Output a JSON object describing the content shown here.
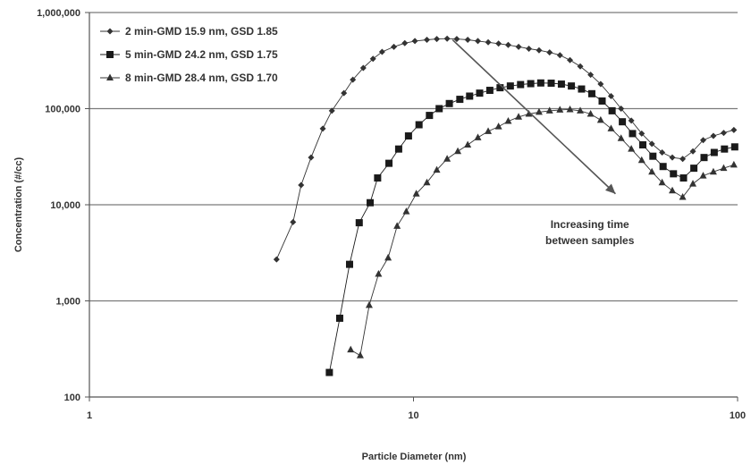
{
  "chart_data": {
    "type": "scatter",
    "title": "",
    "xlabel": "Particle Diameter (nm)",
    "ylabel": "Concentration (#/cc)",
    "x_scale": "log",
    "y_scale": "log",
    "xlim": [
      1,
      100
    ],
    "ylim": [
      100,
      1000000
    ],
    "x_ticks": [
      {
        "value": 1,
        "label": "1"
      },
      {
        "value": 10,
        "label": "10"
      },
      {
        "value": 100,
        "label": "100"
      }
    ],
    "y_ticks": [
      {
        "value": 100,
        "label": "100"
      },
      {
        "value": 1000,
        "label": "1,000"
      },
      {
        "value": 10000,
        "label": "10,000"
      },
      {
        "value": 100000,
        "label": "100,000"
      },
      {
        "value": 1000000,
        "label": "1,000,000"
      }
    ],
    "grid": "horizontal",
    "legend_position": "top-left",
    "series": [
      {
        "name": "2 min-GMD 15.9 nm, GSD 1.85",
        "marker": "diamond",
        "color": "#333333",
        "points": [
          [
            3.78,
            2700
          ],
          [
            4.25,
            6600
          ],
          [
            4.5,
            16000
          ],
          [
            4.83,
            31000
          ],
          [
            5.25,
            62000
          ],
          [
            5.6,
            95000
          ],
          [
            6.1,
            145000
          ],
          [
            6.5,
            200000
          ],
          [
            7.0,
            265000
          ],
          [
            7.5,
            330000
          ],
          [
            8.0,
            390000
          ],
          [
            8.7,
            440000
          ],
          [
            9.4,
            480000
          ],
          [
            10.1,
            505000
          ],
          [
            11.0,
            520000
          ],
          [
            11.8,
            530000
          ],
          [
            12.7,
            535000
          ],
          [
            13.6,
            530000
          ],
          [
            14.7,
            520000
          ],
          [
            15.8,
            505000
          ],
          [
            17.0,
            490000
          ],
          [
            18.3,
            475000
          ],
          [
            19.6,
            460000
          ],
          [
            21.1,
            440000
          ],
          [
            22.7,
            420000
          ],
          [
            24.4,
            405000
          ],
          [
            26.3,
            385000
          ],
          [
            28.3,
            360000
          ],
          [
            30.4,
            320000
          ],
          [
            32.7,
            275000
          ],
          [
            35.2,
            225000
          ],
          [
            37.8,
            180000
          ],
          [
            40.7,
            135000
          ],
          [
            43.7,
            100000
          ],
          [
            47.0,
            75000
          ],
          [
            50.6,
            55000
          ],
          [
            54.4,
            43000
          ],
          [
            58.5,
            35000
          ],
          [
            62.9,
            31000
          ],
          [
            67.7,
            30000
          ],
          [
            72.8,
            36000
          ],
          [
            78.3,
            47000
          ],
          [
            84.2,
            52000
          ],
          [
            90.6,
            56000
          ],
          [
            97.4,
            60000
          ]
        ]
      },
      {
        "name": "5 min-GMD 24.2 nm, GSD 1.75",
        "marker": "square",
        "color": "#1a1a1a",
        "points": [
          [
            5.5,
            180
          ],
          [
            5.92,
            660
          ],
          [
            6.35,
            2400
          ],
          [
            6.8,
            6500
          ],
          [
            7.35,
            10500
          ],
          [
            7.75,
            19000
          ],
          [
            8.4,
            27000
          ],
          [
            9.0,
            38000
          ],
          [
            9.65,
            52000
          ],
          [
            10.4,
            68000
          ],
          [
            11.2,
            85000
          ],
          [
            12.0,
            100000
          ],
          [
            12.9,
            113000
          ],
          [
            13.9,
            125000
          ],
          [
            14.9,
            135000
          ],
          [
            16.0,
            145000
          ],
          [
            17.2,
            155000
          ],
          [
            18.5,
            165000
          ],
          [
            19.9,
            172000
          ],
          [
            21.4,
            178000
          ],
          [
            23.0,
            182000
          ],
          [
            24.7,
            185000
          ],
          [
            26.6,
            184000
          ],
          [
            28.6,
            180000
          ],
          [
            30.7,
            172000
          ],
          [
            33.0,
            160000
          ],
          [
            35.5,
            143000
          ],
          [
            38.2,
            120000
          ],
          [
            41.0,
            95000
          ],
          [
            44.1,
            73000
          ],
          [
            47.4,
            55000
          ],
          [
            51.0,
            42000
          ],
          [
            54.8,
            32000
          ],
          [
            58.9,
            25000
          ],
          [
            63.4,
            21000
          ],
          [
            68.1,
            19000
          ],
          [
            73.3,
            24000
          ],
          [
            78.8,
            31000
          ],
          [
            84.7,
            35000
          ],
          [
            91.1,
            38000
          ],
          [
            98.0,
            40000
          ]
        ]
      },
      {
        "name": "8 min-GMD 28.4 nm, GSD 1.70",
        "marker": "triangle",
        "color": "#333333",
        "points": [
          [
            6.4,
            310
          ],
          [
            6.85,
            270
          ],
          [
            7.3,
            900
          ],
          [
            7.8,
            1900
          ],
          [
            8.35,
            2800
          ],
          [
            8.9,
            6000
          ],
          [
            9.5,
            8500
          ],
          [
            10.2,
            13000
          ],
          [
            11.0,
            17000
          ],
          [
            11.8,
            23000
          ],
          [
            12.7,
            30000
          ],
          [
            13.7,
            36000
          ],
          [
            14.7,
            42000
          ],
          [
            15.8,
            50000
          ],
          [
            17.0,
            58000
          ],
          [
            18.3,
            65000
          ],
          [
            19.6,
            74000
          ],
          [
            21.1,
            82000
          ],
          [
            22.7,
            88000
          ],
          [
            24.4,
            92000
          ],
          [
            26.3,
            95000
          ],
          [
            28.3,
            97000
          ],
          [
            30.4,
            98000
          ],
          [
            32.7,
            95000
          ],
          [
            35.2,
            88000
          ],
          [
            37.8,
            76000
          ],
          [
            40.7,
            62000
          ],
          [
            43.7,
            49000
          ],
          [
            47.0,
            38000
          ],
          [
            50.6,
            29000
          ],
          [
            54.4,
            22000
          ],
          [
            58.5,
            17000
          ],
          [
            62.9,
            14000
          ],
          [
            67.7,
            12000
          ],
          [
            72.8,
            16500
          ],
          [
            78.3,
            20000
          ],
          [
            84.2,
            22000
          ],
          [
            90.6,
            24000
          ],
          [
            97.4,
            26000
          ]
        ]
      }
    ],
    "annotations": {
      "arrow": {
        "from": [
          13.2,
          520000
        ],
        "to": [
          42.0,
          13000
        ]
      },
      "text_lines": [
        "Increasing time",
        "between samples"
      ],
      "text_anchor": [
        35.0,
        5700
      ]
    }
  }
}
